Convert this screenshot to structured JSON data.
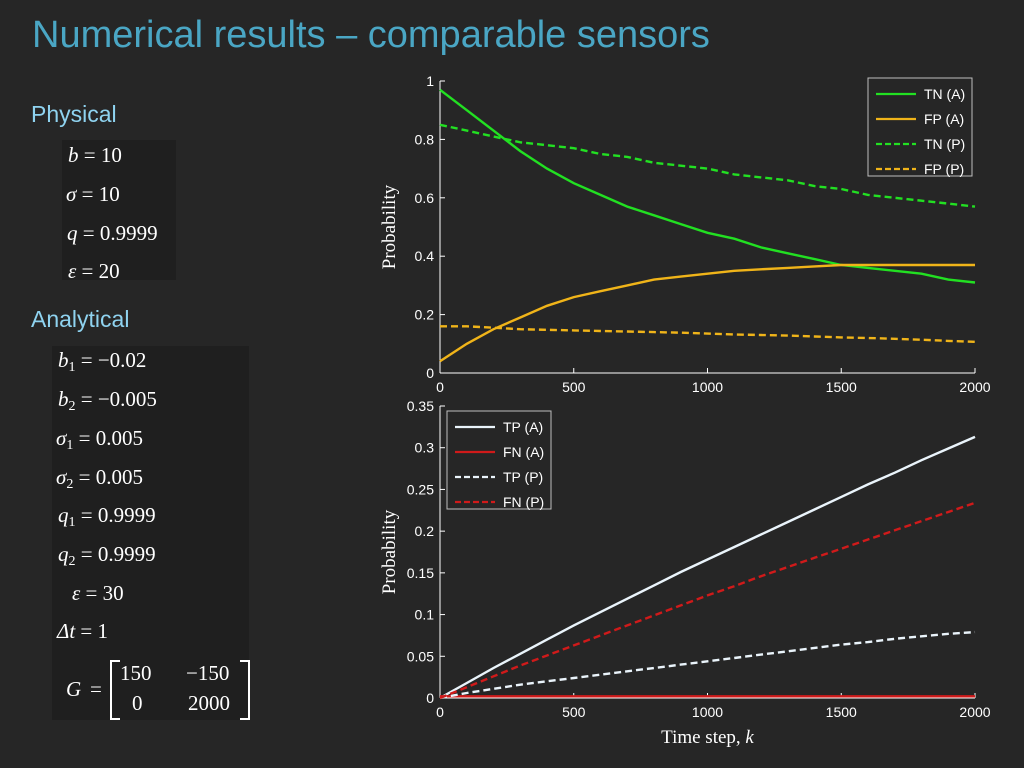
{
  "title": "Numerical results – comparable sensors",
  "physical": {
    "heading": "Physical",
    "params": [
      {
        "sym": "b",
        "value": "= 10"
      },
      {
        "sym": "σ",
        "value": "= 10"
      },
      {
        "sym": "q",
        "value": "= 0.9999"
      },
      {
        "sym": "ε",
        "value": "= 20"
      }
    ]
  },
  "analytical": {
    "heading": "Analytical",
    "params": [
      {
        "sym": "b",
        "sub": "1",
        "value": "= −0.02"
      },
      {
        "sym": "b",
        "sub": "2",
        "value": "= −0.005"
      },
      {
        "sym": "σ",
        "sub": "1",
        "value": "= 0.005"
      },
      {
        "sym": "σ",
        "sub": "2",
        "value": "= 0.005"
      },
      {
        "sym": "q",
        "sub": "1",
        "value": "= 0.9999"
      },
      {
        "sym": "q",
        "sub": "2",
        "value": "= 0.9999"
      },
      {
        "sym": "ε",
        "sub": "",
        "value": "= 30"
      },
      {
        "sym": "Δt",
        "sub": "",
        "value": "= 1"
      }
    ],
    "matrix": {
      "sym": "G",
      "eq": "=",
      "rows": [
        [
          "150",
          "−150"
        ],
        [
          "0",
          "2000"
        ]
      ]
    }
  },
  "chart_data": [
    {
      "type": "line",
      "xlabel": "",
      "ylabel": "Probability",
      "xlim": [
        0,
        2000
      ],
      "ylim": [
        0,
        1
      ],
      "xticks": [
        "0",
        "500",
        "1000",
        "1500",
        "2000"
      ],
      "yticks": [
        "0",
        "0.2",
        "0.4",
        "0.6",
        "0.8",
        "1"
      ],
      "legend_position": "top-right",
      "x": [
        0,
        100,
        200,
        300,
        400,
        500,
        600,
        700,
        800,
        900,
        1000,
        1100,
        1200,
        1300,
        1400,
        1500,
        1600,
        1700,
        1800,
        1900,
        2000
      ],
      "series": [
        {
          "name": "TN (A)",
          "color": "#22e022",
          "style": "solid",
          "values": [
            0.97,
            0.9,
            0.83,
            0.76,
            0.7,
            0.65,
            0.61,
            0.57,
            0.54,
            0.51,
            0.48,
            0.46,
            0.43,
            0.41,
            0.39,
            0.37,
            0.36,
            0.35,
            0.34,
            0.32,
            0.31
          ]
        },
        {
          "name": "FP (A)",
          "color": "#f0b419",
          "style": "solid",
          "values": [
            0.04,
            0.1,
            0.15,
            0.19,
            0.23,
            0.26,
            0.28,
            0.3,
            0.32,
            0.33,
            0.34,
            0.35,
            0.355,
            0.36,
            0.365,
            0.37,
            0.37,
            0.37,
            0.37,
            0.37,
            0.37
          ]
        },
        {
          "name": "TN (P)",
          "color": "#22e022",
          "style": "dashed",
          "values": [
            0.85,
            0.83,
            0.81,
            0.79,
            0.78,
            0.77,
            0.75,
            0.74,
            0.72,
            0.71,
            0.7,
            0.68,
            0.67,
            0.66,
            0.64,
            0.63,
            0.61,
            0.6,
            0.59,
            0.58,
            0.57
          ]
        },
        {
          "name": "FP (P)",
          "color": "#f0b419",
          "style": "dashed",
          "values": [
            0.16,
            0.16,
            0.155,
            0.15,
            0.148,
            0.146,
            0.144,
            0.142,
            0.14,
            0.138,
            0.135,
            0.132,
            0.13,
            0.128,
            0.125,
            0.122,
            0.12,
            0.117,
            0.114,
            0.11,
            0.107
          ]
        }
      ]
    },
    {
      "type": "line",
      "xlabel": "Time step, k",
      "ylabel": "Probability",
      "xlim": [
        0,
        2000
      ],
      "ylim": [
        0,
        0.35
      ],
      "xticks": [
        "0",
        "500",
        "1000",
        "1500",
        "2000"
      ],
      "yticks": [
        "0",
        "0.05",
        "0.1",
        "0.15",
        "0.2",
        "0.25",
        "0.3",
        "0.35"
      ],
      "legend_position": "top-left",
      "x": [
        0,
        100,
        200,
        300,
        400,
        500,
        600,
        700,
        800,
        900,
        1000,
        1100,
        1200,
        1300,
        1400,
        1500,
        1600,
        1700,
        1800,
        1900,
        2000
      ],
      "series": [
        {
          "name": "TP (A)",
          "color": "#eaf4fb",
          "style": "solid",
          "values": [
            0,
            0.018,
            0.036,
            0.053,
            0.07,
            0.087,
            0.103,
            0.119,
            0.135,
            0.151,
            0.166,
            0.181,
            0.196,
            0.211,
            0.226,
            0.241,
            0.256,
            0.27,
            0.285,
            0.299,
            0.313
          ]
        },
        {
          "name": "FN (A)",
          "color": "#d01a1a",
          "style": "solid",
          "values": [
            0.002,
            0.002,
            0.002,
            0.002,
            0.002,
            0.002,
            0.002,
            0.002,
            0.002,
            0.002,
            0.002,
            0.002,
            0.002,
            0.002,
            0.002,
            0.002,
            0.002,
            0.002,
            0.002,
            0.002,
            0.002
          ]
        },
        {
          "name": "TP (P)",
          "color": "#eaf4fb",
          "style": "dashed",
          "values": [
            0,
            0.006,
            0.011,
            0.016,
            0.02,
            0.024,
            0.028,
            0.032,
            0.036,
            0.04,
            0.044,
            0.048,
            0.052,
            0.056,
            0.06,
            0.064,
            0.067,
            0.071,
            0.074,
            0.077,
            0.079
          ]
        },
        {
          "name": "FN (P)",
          "color": "#d01a1a",
          "style": "dashed",
          "values": [
            0,
            0.013,
            0.026,
            0.039,
            0.051,
            0.063,
            0.075,
            0.087,
            0.099,
            0.111,
            0.123,
            0.134,
            0.146,
            0.157,
            0.168,
            0.179,
            0.19,
            0.201,
            0.212,
            0.223,
            0.234
          ]
        }
      ]
    }
  ]
}
